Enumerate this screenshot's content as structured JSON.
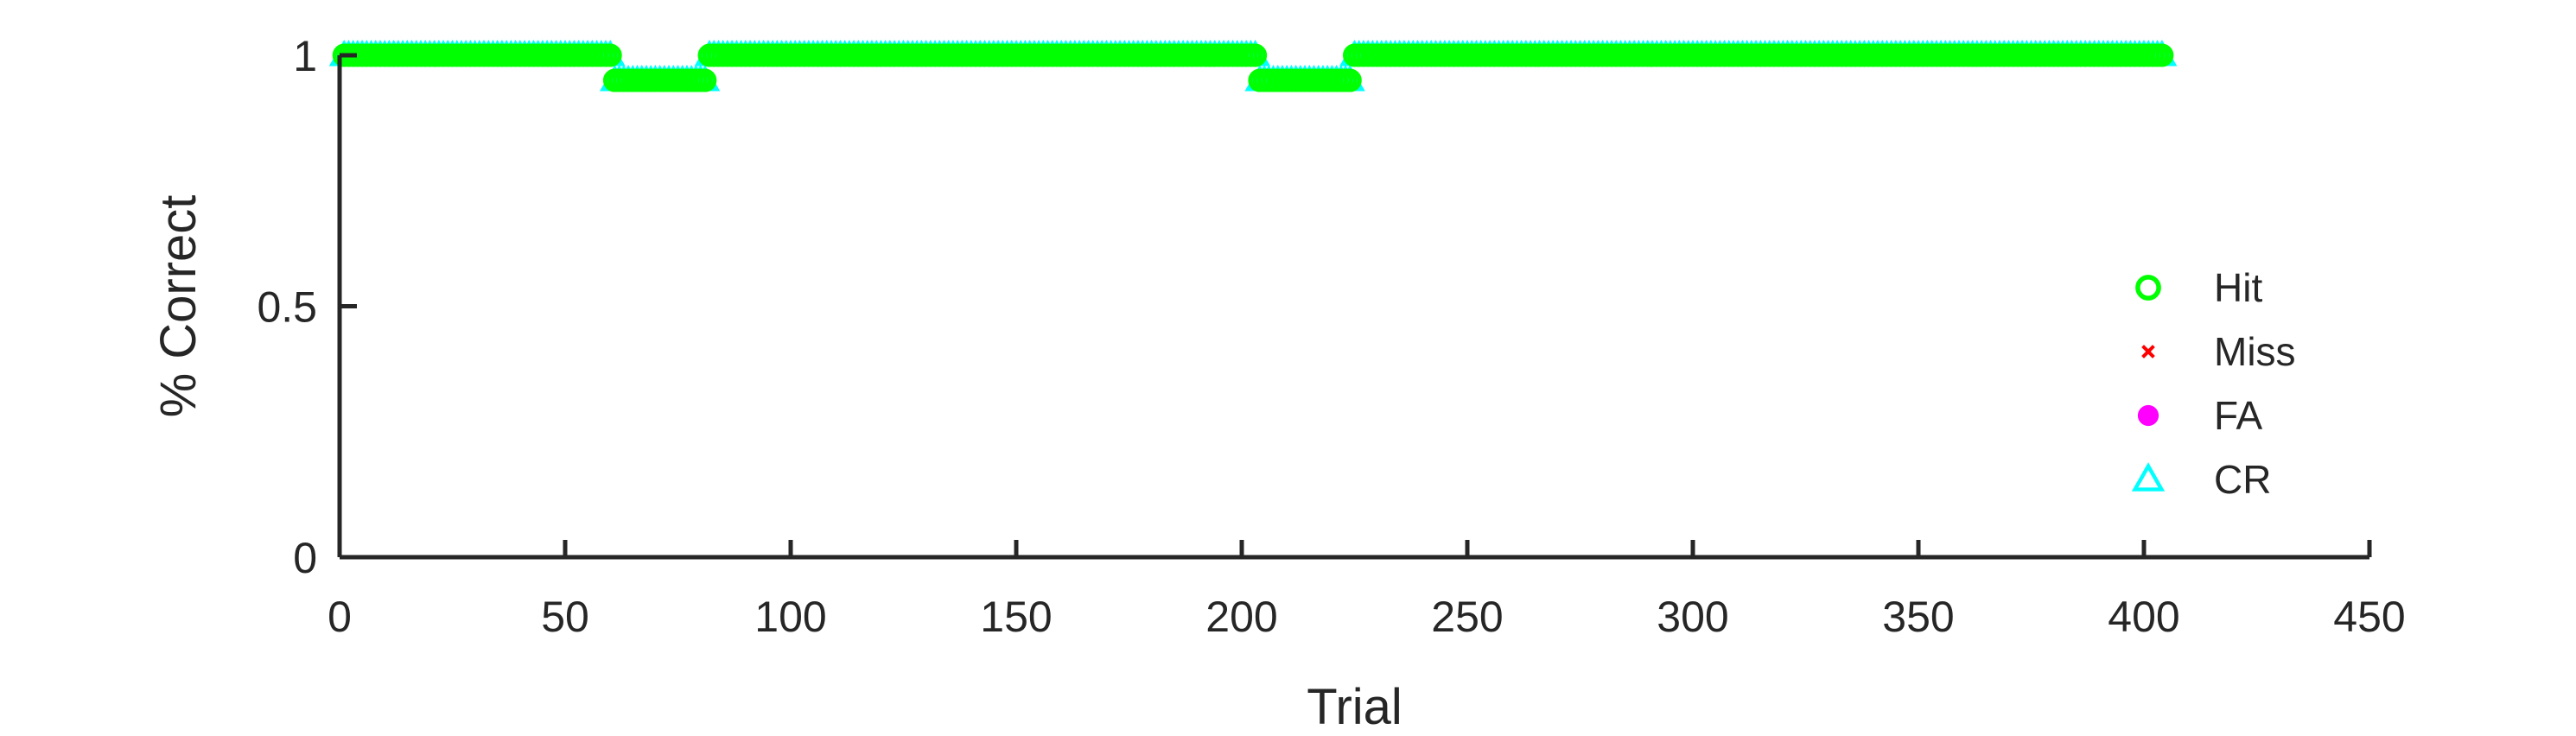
{
  "chart_data": {
    "type": "scatter",
    "title": "",
    "xlabel": "Trial",
    "ylabel": "% Correct",
    "xlim": [
      0,
      450
    ],
    "ylim": [
      0,
      1
    ],
    "xticks": [
      0,
      50,
      100,
      150,
      200,
      250,
      300,
      350,
      400,
      450
    ],
    "yticks": [
      0,
      0.5,
      1
    ],
    "xtick_labels": [
      "0",
      "50",
      "100",
      "150",
      "200",
      "250",
      "300",
      "350",
      "400",
      "450"
    ],
    "ytick_labels": [
      "0",
      "0.5",
      "1"
    ],
    "grid": false,
    "legend": {
      "position": "right",
      "entries": [
        {
          "name": "Hit",
          "marker": "circle-open",
          "color": "#00ff00"
        },
        {
          "name": "Miss",
          "marker": "x",
          "color": "#ff0000"
        },
        {
          "name": "FA",
          "marker": "circle-filled",
          "color": "#ff00ff"
        },
        {
          "name": "CR",
          "marker": "triangle-open",
          "color": "#00ffff"
        }
      ]
    },
    "series": [
      {
        "name": "Hit",
        "marker": "circle-open",
        "color": "#00ff00",
        "segments": [
          {
            "x_start": 1,
            "x_end": 60,
            "y": 1.0
          },
          {
            "x_start": 61,
            "x_end": 81,
            "y": 0.95
          },
          {
            "x_start": 82,
            "x_end": 203,
            "y": 1.0
          },
          {
            "x_start": 204,
            "x_end": 224,
            "y": 0.95
          },
          {
            "x_start": 225,
            "x_end": 404,
            "y": 1.0
          }
        ]
      },
      {
        "name": "Miss",
        "marker": "x",
        "color": "#ff0000",
        "segments": []
      },
      {
        "name": "FA",
        "marker": "circle-filled",
        "color": "#ff00ff",
        "segments": []
      },
      {
        "name": "CR",
        "marker": "triangle-open",
        "color": "#00ffff",
        "segments": [
          {
            "x_start": 1,
            "x_end": 60,
            "y": 1.0
          },
          {
            "x_start": 61,
            "x_end": 81,
            "y": 0.95
          },
          {
            "x_start": 82,
            "x_end": 203,
            "y": 1.0
          },
          {
            "x_start": 204,
            "x_end": 224,
            "y": 0.95
          },
          {
            "x_start": 225,
            "x_end": 404,
            "y": 1.0
          }
        ]
      }
    ]
  }
}
